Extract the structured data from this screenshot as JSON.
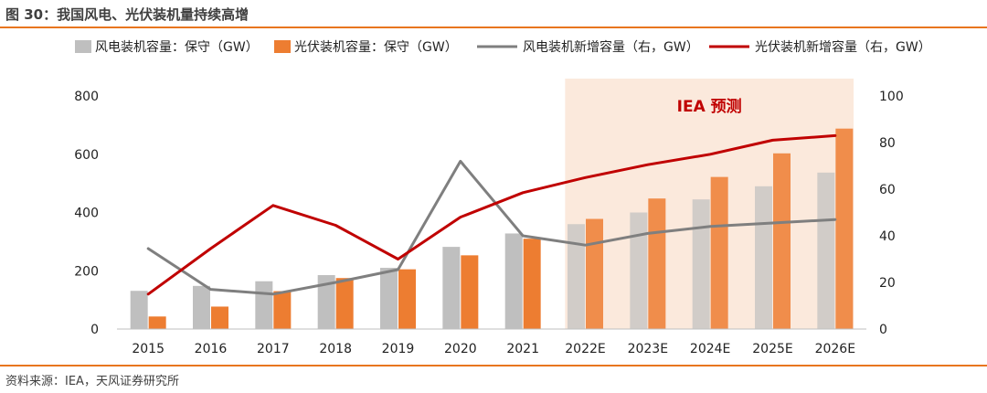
{
  "header": {
    "title": "图 30：我国风电、光伏装机量持续高增"
  },
  "footer": {
    "source": "资料来源：IEA，天风证券研究所"
  },
  "colors": {
    "wind_bar": "#bfbfbf",
    "solar_bar": "#ed7d31",
    "wind_line": "#7f7f7f",
    "solar_line": "#c00000",
    "forecast_shade": "#fbe9dc",
    "forecast_label": "#c00000",
    "accent_rule": "#e8761f"
  },
  "chart_data": {
    "type": "bar",
    "categories": [
      "2015",
      "2016",
      "2017",
      "2018",
      "2019",
      "2020",
      "2021",
      "2022E",
      "2023E",
      "2024E",
      "2025E",
      "2026E"
    ],
    "y_left": {
      "ticks": [
        "0",
        "200",
        "400",
        "600",
        "800"
      ],
      "ylim": [
        0,
        800
      ]
    },
    "y_right": {
      "ticks": [
        "0",
        "20",
        "40",
        "60",
        "80",
        "100"
      ],
      "ylim": [
        0,
        100
      ]
    },
    "forecast_label": "IEA 预测",
    "forecast_start_index": 7,
    "series": [
      {
        "name": "风电装机容量：保守（GW）",
        "type": "bar",
        "axis": "left",
        "values": [
          131,
          148,
          164,
          185,
          210,
          282,
          328,
          360,
          400,
          445,
          490,
          537
        ]
      },
      {
        "name": "光伏装机容量：保守（GW）",
        "type": "bar",
        "axis": "left",
        "values": [
          43,
          77,
          130,
          175,
          205,
          253,
          310,
          378,
          448,
          522,
          603,
          688
        ]
      },
      {
        "name": "风电装机新增容量（右，GW）",
        "type": "line",
        "axis": "right",
        "values": [
          34.5,
          17,
          15,
          20,
          25.5,
          72,
          40,
          36,
          41,
          44,
          45.5,
          47
        ]
      },
      {
        "name": "光伏装机新增容量（右，GW）",
        "type": "line",
        "axis": "right",
        "values": [
          15,
          34.5,
          53,
          44.5,
          30,
          48,
          58.5,
          65,
          70.5,
          75,
          81,
          83
        ]
      }
    ]
  }
}
